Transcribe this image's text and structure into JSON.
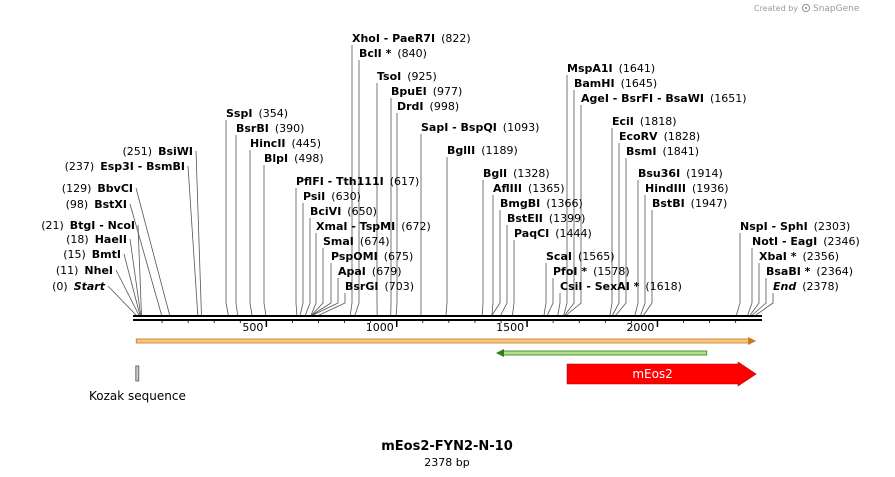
{
  "credit": {
    "prefix": "Created by",
    "brand": "SnapGene"
  },
  "map": {
    "name": "mEos2-FYN2-N-10",
    "length_text": "2378 bp",
    "length_bp": 2378,
    "ticks": [
      "500",
      "1000",
      "1500",
      "2000"
    ],
    "tick_values": [
      500,
      1000,
      1500,
      2000
    ]
  },
  "colors": {
    "backbone": "#000000",
    "orf_fill": "#f5c77e",
    "orf_edge": "#c8781e",
    "green_fill": "#b6e08a",
    "green_edge": "#2e7d1a",
    "meos2_fill": "#ff0000",
    "kozak_fill": "#c8c8c8"
  },
  "sites": [
    {
      "label": "Start",
      "pos": "(0)",
      "bp": 0,
      "italic": true
    },
    {
      "label": "NheI",
      "pos": "(11)",
      "bp": 11
    },
    {
      "label": "BmtI",
      "pos": "(15)",
      "bp": 15
    },
    {
      "label": "HaeII",
      "pos": "(18)",
      "bp": 18
    },
    {
      "label": "BtgI  -  NcoI",
      "pos": "(21)",
      "bp": 21
    },
    {
      "label": "BstXI",
      "pos": "(98)",
      "bp": 98
    },
    {
      "label": "BbvCI",
      "pos": "(129)",
      "bp": 129
    },
    {
      "label": "Esp3I  -  BsmBI",
      "pos": "(237)",
      "bp": 237
    },
    {
      "label": "BsiWI",
      "pos": "(251)",
      "bp": 251
    },
    {
      "label": "SspI",
      "pos": "(354)",
      "bp": 354
    },
    {
      "label": "BsrBI",
      "pos": "(390)",
      "bp": 390
    },
    {
      "label": "HincII",
      "pos": "(445)",
      "bp": 445
    },
    {
      "label": "BlpI",
      "pos": "(498)",
      "bp": 498
    },
    {
      "label": "PflFI  -  Tth111I",
      "pos": "(617)",
      "bp": 617
    },
    {
      "label": "PsiI",
      "pos": "(630)",
      "bp": 630
    },
    {
      "label": "BciVI",
      "pos": "(650)",
      "bp": 650
    },
    {
      "label": "XmaI  -  TspMI",
      "pos": "(672)",
      "bp": 672
    },
    {
      "label": "SmaI",
      "pos": "(674)",
      "bp": 674
    },
    {
      "label": "PspOMI",
      "pos": "(675)",
      "bp": 675
    },
    {
      "label": "ApaI",
      "pos": "(679)",
      "bp": 679
    },
    {
      "label": "BsrGI",
      "pos": "(703)",
      "bp": 703
    },
    {
      "label": "XhoI  -  PaeR7I",
      "pos": "(822)",
      "bp": 822
    },
    {
      "label": "BclI *",
      "pos": "(840)",
      "bp": 840
    },
    {
      "label": "TsoI",
      "pos": "(925)",
      "bp": 925
    },
    {
      "label": "BpuEI",
      "pos": "(977)",
      "bp": 977
    },
    {
      "label": "DrdI",
      "pos": "(998)",
      "bp": 998
    },
    {
      "label": "SapI  -  BspQI",
      "pos": "(1093)",
      "bp": 1093
    },
    {
      "label": "BglII",
      "pos": "(1189)",
      "bp": 1189
    },
    {
      "label": "BglI",
      "pos": "(1328)",
      "bp": 1328
    },
    {
      "label": "AflIII",
      "pos": "(1365)",
      "bp": 1365
    },
    {
      "label": "BmgBI",
      "pos": "(1366)",
      "bp": 1366
    },
    {
      "label": "BstEII",
      "pos": "(1399)",
      "bp": 1399
    },
    {
      "label": "PaqCI",
      "pos": "(1444)",
      "bp": 1444
    },
    {
      "label": "ScaI",
      "pos": "(1565)",
      "bp": 1565
    },
    {
      "label": "PfoI *",
      "pos": "(1578)",
      "bp": 1578
    },
    {
      "label": "CsiI  -  SexAI *",
      "pos": "(1618)",
      "bp": 1618
    },
    {
      "label": "MspA1I",
      "pos": "(1641)",
      "bp": 1641
    },
    {
      "label": "BamHI",
      "pos": "(1645)",
      "bp": 1645
    },
    {
      "label": "AgeI  -  BsrFI  -  BsaWI",
      "pos": "(1651)",
      "bp": 1651
    },
    {
      "label": "EciI",
      "pos": "(1818)",
      "bp": 1818
    },
    {
      "label": "EcoRV",
      "pos": "(1828)",
      "bp": 1828
    },
    {
      "label": "BsmI",
      "pos": "(1841)",
      "bp": 1841
    },
    {
      "label": "Bsu36I",
      "pos": "(1914)",
      "bp": 1914
    },
    {
      "label": "HindIII",
      "pos": "(1936)",
      "bp": 1936
    },
    {
      "label": "BstBI",
      "pos": "(1947)",
      "bp": 1947
    },
    {
      "label": "NspI  -  SphI",
      "pos": "(2303)",
      "bp": 2303
    },
    {
      "label": "NotI  -  EagI",
      "pos": "(2346)",
      "bp": 2346
    },
    {
      "label": "XbaI *",
      "pos": "(2356)",
      "bp": 2356
    },
    {
      "label": "BsaBI *",
      "pos": "(2364)",
      "bp": 2364
    },
    {
      "label": "End",
      "pos": "(2378)",
      "bp": 2378,
      "italic": true
    }
  ],
  "features": {
    "orf": {
      "start_bp": 1,
      "end_bp": 2340,
      "direction": "forward"
    },
    "green": {
      "start_bp": 1400,
      "end_bp": 2170,
      "direction": "reverse"
    },
    "meos2": {
      "label": "mEos2",
      "start_bp": 1661,
      "end_bp": 2340,
      "direction": "forward"
    },
    "kozak": {
      "label": "Kozak sequence",
      "start_bp": 5,
      "end_bp": 14
    }
  }
}
